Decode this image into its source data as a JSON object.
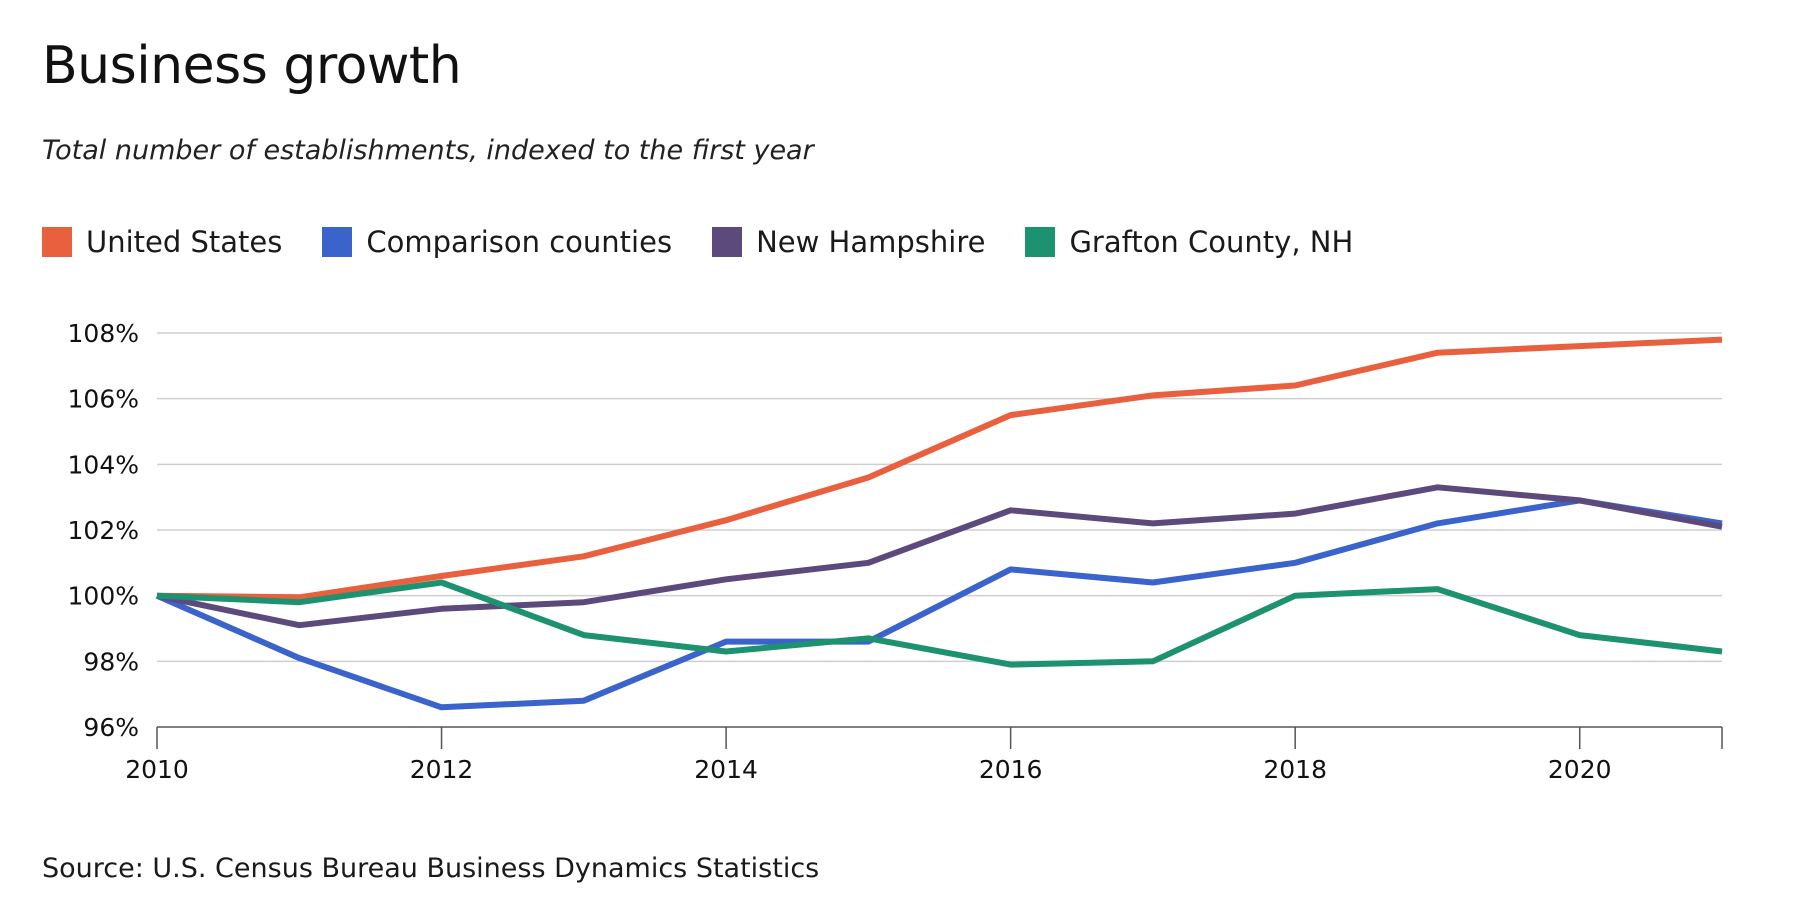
{
  "header": {
    "title": "Business growth",
    "subtitle": "Total number of establishments, indexed to the first year"
  },
  "footer": {
    "source": "Source: U.S. Census Bureau Business Dynamics Statistics"
  },
  "chart_data": {
    "type": "line",
    "title": "Business growth",
    "subtitle": "Total number of establishments, indexed to the first year",
    "xlabel": "",
    "ylabel": "",
    "x": [
      2010,
      2011,
      2012,
      2013,
      2014,
      2015,
      2016,
      2017,
      2018,
      2019,
      2020,
      2021
    ],
    "xlim": [
      2010,
      2021
    ],
    "ylim": [
      96,
      108
    ],
    "x_ticks": [
      2010,
      2012,
      2014,
      2016,
      2018,
      2020
    ],
    "x_tick_labels": [
      "2010",
      "2012",
      "2014",
      "2016",
      "2018",
      "2020"
    ],
    "y_ticks": [
      96,
      98,
      100,
      102,
      104,
      106,
      108
    ],
    "y_tick_labels": [
      "96%",
      "98%",
      "100%",
      "102%",
      "104%",
      "106%",
      "108%"
    ],
    "grid": true,
    "legend_position": "top-left",
    "series": [
      {
        "name": "United States",
        "color": "#e9603e",
        "values": [
          100.0,
          99.95,
          100.6,
          101.2,
          102.3,
          103.6,
          105.5,
          106.1,
          106.4,
          107.4,
          107.6,
          107.8
        ]
      },
      {
        "name": "Comparison counties",
        "color": "#3a63cc",
        "values": [
          100.0,
          98.1,
          96.6,
          96.8,
          98.6,
          98.6,
          100.8,
          100.4,
          101.0,
          102.2,
          102.9,
          102.2
        ]
      },
      {
        "name": "New Hampshire",
        "color": "#5c4a7d",
        "values": [
          100.0,
          99.1,
          99.6,
          99.8,
          100.5,
          101.0,
          102.6,
          102.2,
          102.5,
          103.3,
          102.9,
          102.1
        ]
      },
      {
        "name": "Grafton County, NH",
        "color": "#1d9270",
        "values": [
          100.0,
          99.8,
          100.4,
          98.8,
          98.3,
          98.7,
          97.9,
          98.0,
          100.0,
          100.2,
          98.8,
          98.3
        ]
      }
    ]
  }
}
